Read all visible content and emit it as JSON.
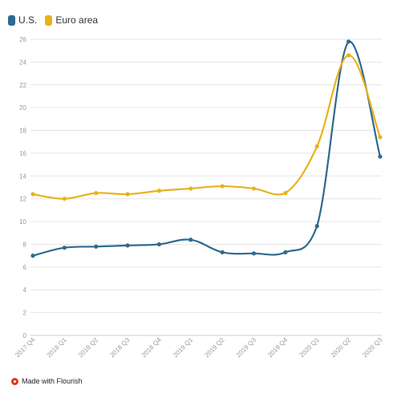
{
  "chart_data": {
    "type": "line",
    "categories": [
      "2017 Q4",
      "2018 Q1",
      "2018 Q2",
      "2018 Q3",
      "2018 Q4",
      "2019 Q1",
      "2019 Q2",
      "2019 Q3",
      "2019 Q4",
      "2020 Q1",
      "2020 Q2",
      "2020 Q3"
    ],
    "series": [
      {
        "name": "U.S.",
        "color": "#2e6a8f",
        "values": [
          7.0,
          7.7,
          7.8,
          7.9,
          8.0,
          8.4,
          7.3,
          7.2,
          7.3,
          9.6,
          25.8,
          15.7
        ]
      },
      {
        "name": "Euro area",
        "color": "#e8b21c",
        "values": [
          12.4,
          12.0,
          12.5,
          12.4,
          12.7,
          12.9,
          13.1,
          12.9,
          12.5,
          16.6,
          24.6,
          17.4
        ]
      }
    ],
    "ylim": [
      0,
      26
    ],
    "yticks": [
      0,
      2,
      4,
      6,
      8,
      10,
      12,
      14,
      16,
      18,
      20,
      22,
      24,
      26
    ],
    "grid": true,
    "legend_position": "top-left",
    "title": "",
    "xlabel": "",
    "ylabel": ""
  },
  "legend": {
    "us_label": "U.S.",
    "euro_label": "Euro area"
  },
  "footer": {
    "text": "Made with Flourish"
  }
}
